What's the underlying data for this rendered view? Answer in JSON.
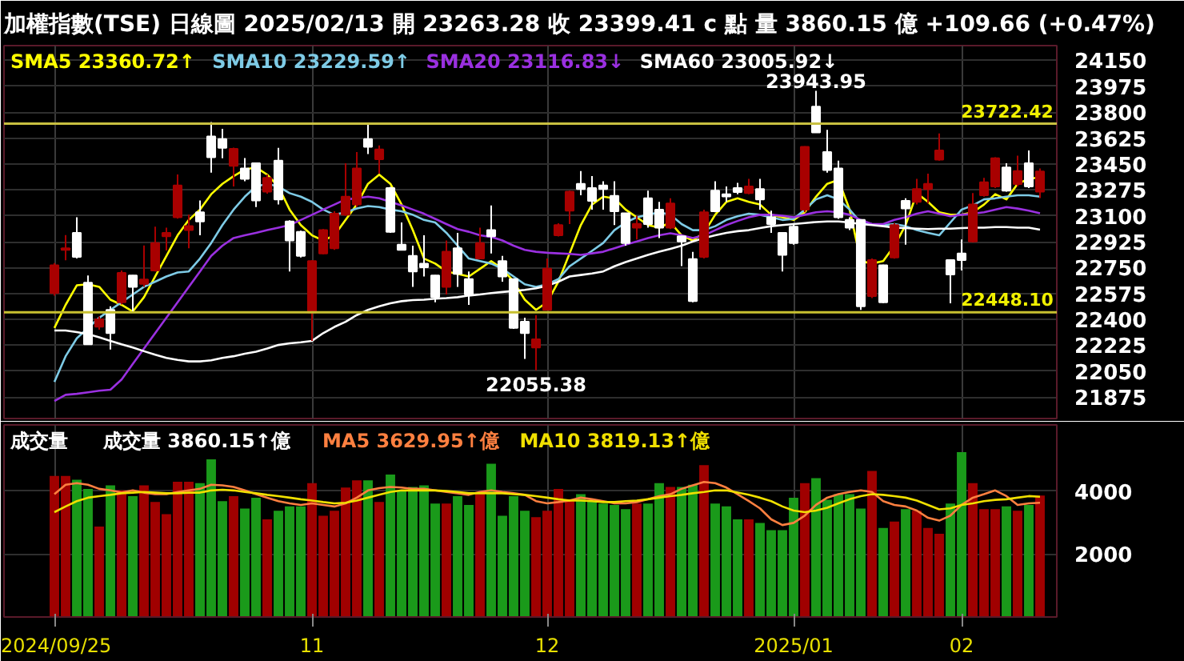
{
  "chart_data": [
    {
      "type": "candlestick",
      "title": "加權指數(TSE)  日線圖  2025/02/13  開 23263.28  收 23399.41 c 點  量 3860.15 億  +109.66 (+0.47%)",
      "categories": [
        "2024/09/25",
        null,
        null,
        null,
        null,
        null,
        null,
        null,
        null,
        null,
        null,
        null,
        null,
        null,
        null,
        null,
        null,
        null,
        null,
        null,
        null,
        null,
        null,
        "11",
        null,
        null,
        null,
        null,
        null,
        null,
        null,
        null,
        null,
        null,
        null,
        null,
        null,
        null,
        null,
        null,
        null,
        null,
        null,
        null,
        "12",
        null,
        null,
        null,
        null,
        null,
        null,
        null,
        null,
        null,
        null,
        null,
        null,
        null,
        null,
        null,
        null,
        null,
        null,
        null,
        null,
        null,
        "2025/01",
        null,
        null,
        null,
        null,
        null,
        null,
        null,
        null,
        null,
        null,
        null,
        null,
        null,
        null,
        "02",
        null,
        null,
        null,
        null,
        null,
        null,
        null
      ],
      "colors": [
        "#a80000",
        "#a80000",
        "#ffffff",
        "#ffffff",
        "#a80000",
        "#ffffff",
        "#a80000",
        "#ffffff",
        "#a80000",
        "#a80000",
        "#a80000",
        "#a80000",
        "#a80000",
        "#ffffff",
        "#ffffff",
        "#ffffff",
        "#a80000",
        "#ffffff",
        "#ffffff",
        "#a80000",
        "#ffffff",
        "#ffffff",
        "#ffffff",
        "#a80000",
        "#a80000",
        "#a80000",
        "#a80000",
        "#a80000",
        "#ffffff",
        "#a80000",
        "#ffffff",
        "#ffffff",
        "#ffffff",
        "#ffffff",
        "#ffffff",
        "#a80000",
        "#ffffff",
        "#ffffff",
        "#a80000",
        "#ffffff",
        "#ffffff",
        "#ffffff",
        "#ffffff",
        "#a80000",
        "#a80000",
        "#a80000",
        "#a80000",
        "#ffffff",
        "#ffffff",
        "#ffffff",
        "#ffffff",
        "#ffffff",
        "#a80000",
        "#ffffff",
        "#ffffff",
        "#a80000",
        "#ffffff",
        "#ffffff",
        "#a80000",
        "#ffffff",
        "#ffffff",
        "#ffffff",
        "#a80000",
        "#ffffff",
        "#ffffff",
        "#ffffff",
        "#ffffff",
        "#a80000",
        "#ffffff",
        "#ffffff",
        "#ffffff",
        "#ffffff",
        "#ffffff",
        "#a80000",
        "#ffffff",
        "#a80000",
        "#ffffff",
        "#a80000",
        "#a80000",
        "#a80000",
        "#ffffff",
        "#ffffff",
        "#a80000",
        "#a80000",
        "#a80000",
        "#ffffff",
        "#a80000",
        "#ffffff",
        "#a80000"
      ],
      "ohlc": [
        [
          22578,
          22780,
          22560,
          22766
        ],
        [
          22870,
          22970,
          22800,
          22880
        ],
        [
          22985,
          23090,
          22811,
          22822
        ],
        [
          22648,
          22697,
          22231,
          22231
        ],
        [
          22350,
          22420,
          22330,
          22400
        ],
        [
          22464,
          22488,
          22196,
          22307
        ],
        [
          22516,
          22730,
          22500,
          22714
        ],
        [
          22697,
          22700,
          22450,
          22620
        ],
        [
          22640,
          22900,
          22620,
          22670
        ],
        [
          22731,
          23027,
          22724,
          22915
        ],
        [
          22961,
          23020,
          22865,
          22985
        ],
        [
          23090,
          23380,
          23080,
          23305
        ],
        [
          23003,
          23107,
          22880,
          23030
        ],
        [
          23124,
          23204,
          22968,
          23062
        ],
        [
          23636,
          23733,
          23392,
          23496
        ],
        [
          23618,
          23688,
          23489,
          23559
        ],
        [
          23437,
          23560,
          23298,
          23552
        ],
        [
          23420,
          23490,
          23333,
          23350
        ],
        [
          23455,
          23460,
          23159,
          23204
        ],
        [
          23263,
          23380,
          23250,
          23357
        ],
        [
          23472,
          23559,
          23176,
          23211
        ],
        [
          23062,
          23070,
          22724,
          22933
        ],
        [
          22992,
          23000,
          22818,
          22829
        ],
        [
          22446,
          22800,
          22255,
          22794
        ],
        [
          22846,
          23010,
          22840,
          23003
        ],
        [
          22881,
          23130,
          22870,
          23114
        ],
        [
          23107,
          23455,
          23100,
          23229
        ],
        [
          23176,
          23531,
          23160,
          23420
        ],
        [
          23618,
          23715,
          23517,
          23566
        ],
        [
          23482,
          23576,
          23385,
          23548
        ],
        [
          23288,
          23295,
          22985,
          22992
        ],
        [
          22905,
          23055,
          22865,
          22870
        ],
        [
          22829,
          22898,
          22620,
          22724
        ],
        [
          22776,
          22968,
          22690,
          22752
        ],
        [
          22697,
          22700,
          22516,
          22550
        ],
        [
          22620,
          22933,
          22568,
          22857
        ],
        [
          22881,
          22985,
          22620,
          22707
        ],
        [
          22672,
          22724,
          22498,
          22568
        ],
        [
          22811,
          23020,
          22810,
          22916
        ],
        [
          23003,
          23170,
          22846,
          22961
        ],
        [
          22794,
          22829,
          22655,
          22690
        ],
        [
          22672,
          22675,
          22335,
          22342
        ],
        [
          22384,
          22411,
          22133,
          22307
        ],
        [
          22210,
          22429,
          22055.38,
          22265
        ],
        [
          22464,
          22811,
          22460,
          22742
        ],
        [
          22968,
          23050,
          22960,
          23037
        ],
        [
          23135,
          23270,
          23044,
          23263
        ],
        [
          23316,
          23402,
          23239,
          23281
        ],
        [
          23288,
          23368,
          23142,
          23201
        ],
        [
          23305,
          23333,
          23142,
          23281
        ],
        [
          23235,
          23333,
          23037,
          23131
        ],
        [
          23117,
          23120,
          22898,
          22916
        ],
        [
          23020,
          23100,
          22940,
          23045
        ],
        [
          23218,
          23270,
          23020,
          23044
        ],
        [
          23142,
          23194,
          22950,
          23020
        ],
        [
          23020,
          23218,
          23010,
          23183
        ],
        [
          22961,
          22965,
          22760,
          22926
        ],
        [
          22808,
          22856,
          22516,
          22523
        ],
        [
          22822,
          23142,
          22811,
          23124
        ],
        [
          23270,
          23333,
          23124,
          23131
        ],
        [
          23245,
          23298,
          23194,
          23230
        ],
        [
          23288,
          23322,
          23245,
          23260
        ],
        [
          23253,
          23350,
          23245,
          23298
        ],
        [
          23281,
          23350,
          23142,
          23211
        ],
        [
          23090,
          23135,
          22985,
          23044
        ],
        [
          22985,
          22990,
          22724,
          22836
        ],
        [
          23027,
          23040,
          22905,
          22916
        ],
        [
          23142,
          23570,
          23124,
          23566
        ],
        [
          23837,
          23943.95,
          23660,
          23663
        ],
        [
          23531,
          23681,
          23392,
          23409
        ],
        [
          23420,
          23472,
          23079,
          23090
        ],
        [
          23072,
          23090,
          23003,
          23020
        ],
        [
          23072,
          23075,
          22464,
          22488
        ],
        [
          22557,
          22811,
          22544,
          22801
        ],
        [
          22766,
          22770,
          22510,
          22516
        ],
        [
          22818,
          23050,
          22810,
          23037
        ],
        [
          23201,
          23218,
          22905,
          23149
        ],
        [
          23194,
          23350,
          23176,
          23281
        ],
        [
          23281,
          23385,
          23183,
          23316
        ],
        [
          23479,
          23656,
          23472,
          23542
        ],
        [
          22801,
          22805,
          22509,
          22704
        ],
        [
          22846,
          22940,
          22731,
          22801
        ],
        [
          22926,
          23253,
          22920,
          23176
        ],
        [
          23239,
          23357,
          23229,
          23326
        ],
        [
          23298,
          23496,
          23288,
          23489
        ],
        [
          23427,
          23455,
          23263,
          23270
        ],
        [
          23315,
          23507,
          23298,
          23402
        ],
        [
          23455,
          23541,
          23288,
          23298
        ],
        [
          23263.28,
          23420,
          23220,
          23399.41
        ]
      ],
      "series": [
        {
          "type": "line",
          "name": "SMA5 23360.72↑",
          "color": "#ffff00",
          "values": [
            22342,
            22498,
            22630,
            22637,
            22620,
            22533,
            22498,
            22453,
            22550,
            22690,
            22829,
            22968,
            23072,
            23142,
            23246,
            23316,
            23368,
            23413,
            23427,
            23378,
            23298,
            23142,
            23037,
            22968,
            22933,
            22968,
            23072,
            23176,
            23316,
            23378,
            23316,
            23176,
            23003,
            22811,
            22777,
            22724,
            22707,
            22690,
            22742,
            22794,
            22742,
            22655,
            22533,
            22464,
            22516,
            22655,
            22846,
            23037,
            23176,
            23229,
            23218,
            23142,
            23090,
            23037,
            23020,
            23055,
            22968,
            22933,
            22985,
            23107,
            23194,
            23218,
            23194,
            23176,
            23107,
            23090,
            23072,
            23124,
            23229,
            23316,
            23343,
            23142,
            22794,
            22777,
            22794,
            22898,
            23037,
            23253,
            23194,
            23124,
            23107,
            23107,
            23124,
            23176,
            23246,
            23211,
            23316,
            23350,
            23360.72
          ]
        },
        {
          "type": "line",
          "name": "SMA10 23229.59↑",
          "color": "#7ecbe6",
          "values": [
            21977,
            22151,
            22272,
            22342,
            22411,
            22464,
            22516,
            22568,
            22620,
            22655,
            22690,
            22717,
            22724,
            22811,
            22916,
            23037,
            23142,
            23229,
            23298,
            23316,
            23298,
            23253,
            23229,
            23194,
            23142,
            23107,
            23124,
            23149,
            23166,
            23159,
            23142,
            23131,
            23107,
            23072,
            23055,
            22985,
            22898,
            22811,
            22794,
            22777,
            22742,
            22690,
            22637,
            22620,
            22637,
            22672,
            22759,
            22811,
            22863,
            22916,
            23003,
            23055,
            23090,
            23107,
            23124,
            23107,
            23044,
            23003,
            23003,
            23030,
            23072,
            23097,
            23114,
            23107,
            23090,
            23072,
            23079,
            23142,
            23211,
            23239,
            23211,
            23142,
            23055,
            23044,
            23037,
            23044,
            23030,
            23003,
            22985,
            22968,
            23055,
            23142,
            23170,
            23211,
            23218,
            23229,
            23239,
            23239,
            23229.59
          ]
        },
        {
          "type": "line",
          "name": "SMA20 23116.83↓",
          "color": "#9a30e0",
          "values": [
            21848,
            21890,
            21897,
            21907,
            21918,
            21925,
            21994,
            22099,
            22203,
            22307,
            22411,
            22516,
            22620,
            22724,
            22829,
            22898,
            22950,
            22968,
            22985,
            23003,
            23020,
            23037,
            23072,
            23107,
            23142,
            23176,
            23211,
            23218,
            23229,
            23218,
            23194,
            23170,
            23142,
            23114,
            23079,
            23044,
            23010,
            22992,
            22968,
            22957,
            22933,
            22898,
            22870,
            22857,
            22850,
            22846,
            22843,
            22836,
            22846,
            22857,
            22881,
            22905,
            22926,
            22950,
            22968,
            22982,
            22968,
            22950,
            22968,
            23003,
            23037,
            23065,
            23090,
            23107,
            23107,
            23100,
            23090,
            23107,
            23124,
            23131,
            23124,
            23107,
            23072,
            23044,
            23044,
            23072,
            23090,
            23114,
            23131,
            23114,
            23097,
            23107,
            23114,
            23124,
            23142,
            23159,
            23149,
            23135,
            23116.83
          ]
        },
        {
          "type": "line",
          "name": "SMA60 23005.92↓",
          "color": "#ffffff",
          "values": [
            22325,
            22325,
            22314,
            22300,
            22279,
            22255,
            22231,
            22210,
            22185,
            22161,
            22140,
            22126,
            22116,
            22116,
            22123,
            22140,
            22151,
            22168,
            22182,
            22203,
            22227,
            22238,
            22245,
            22255,
            22307,
            22349,
            22384,
            22429,
            22464,
            22488,
            22509,
            22523,
            22530,
            22533,
            22540,
            22544,
            22550,
            22561,
            22568,
            22578,
            22585,
            22592,
            22599,
            22610,
            22627,
            22655,
            22690,
            22700,
            22710,
            22724,
            22759,
            22787,
            22811,
            22836,
            22857,
            22877,
            22898,
            22926,
            22950,
            22968,
            22985,
            22996,
            23003,
            23017,
            23030,
            23037,
            23044,
            23051,
            23058,
            23062,
            23062,
            23055,
            23044,
            23037,
            23030,
            23020,
            23017,
            23013,
            23010,
            23013,
            23013,
            23017,
            23020,
            23020,
            23024,
            23024,
            23020,
            23020,
            23005.92
          ]
        }
      ],
      "ylim": [
        21730,
        24250
      ],
      "yticks": [
        21875,
        22050,
        22225,
        22400,
        22575,
        22750,
        22925,
        23100,
        23275,
        23450,
        23625,
        23800,
        23975,
        24150
      ],
      "ref_lines": [
        {
          "axis": "y",
          "value": 23722.42,
          "label": "23722.42",
          "color": "#c8c040"
        },
        {
          "axis": "y",
          "value": 22448.1,
          "label": "22448.10",
          "color": "#c8c030"
        }
      ],
      "annotations": [
        {
          "text": "23943.95",
          "y": 23943.95
        },
        {
          "text": "22055.38",
          "y": 22055.38
        }
      ],
      "grid": true,
      "legend": "top left",
      "tick_labels": "y"
    },
    {
      "type": "bar",
      "title": "成交量",
      "categories": [
        "2024/09/25",
        null,
        null,
        null,
        null,
        null,
        null,
        null,
        null,
        null,
        null,
        null,
        null,
        null,
        null,
        null,
        null,
        null,
        null,
        null,
        null,
        null,
        null,
        "11",
        null,
        null,
        null,
        null,
        null,
        null,
        null,
        null,
        null,
        null,
        null,
        null,
        null,
        null,
        null,
        null,
        null,
        null,
        null,
        null,
        "12",
        null,
        null,
        null,
        null,
        null,
        null,
        null,
        null,
        null,
        null,
        null,
        null,
        null,
        null,
        null,
        null,
        null,
        null,
        null,
        null,
        null,
        "2025/01",
        null,
        null,
        null,
        null,
        null,
        null,
        null,
        null,
        null,
        null,
        null,
        null,
        null,
        null,
        "02",
        null,
        null,
        null,
        null,
        null,
        null,
        null
      ],
      "series": [
        {
          "type": "bar",
          "name": "成交量 3860.15↑億",
          "values": [
            4478,
            4478,
            4362,
            4064,
            2873,
            4179,
            4020,
            3837,
            4179,
            3653,
            3263,
            4295,
            4295,
            4248,
            5007,
            3676,
            3837,
            3446,
            3790,
            3100,
            3374,
            3514,
            3514,
            4248,
            3215,
            3374,
            4111,
            4338,
            4338,
            3653,
            4524,
            4020,
            4132,
            4179,
            3605,
            3605,
            3837,
            3560,
            3972,
            4868,
            3215,
            3837,
            3374,
            3171,
            3374,
            4064,
            3745,
            3904,
            3676,
            3605,
            3560,
            3422,
            3605,
            3605,
            4248,
            4132,
            4132,
            4202,
            4820,
            3605,
            3514,
            3100,
            3100,
            2988,
            2757,
            2757,
            3790,
            4248,
            4410,
            3721,
            3904,
            3904,
            3446,
            4637,
            2825,
            3032,
            3422,
            3374,
            2825,
            2641,
            3605,
            5235,
            4248,
            3422,
            3422,
            3514,
            3374,
            3560,
            3860.15
          ],
          "colors": [
            "#a00000",
            "#a00000",
            "#1a9a1a",
            "#1a9a1a",
            "#a00000",
            "#1a9a1a",
            "#a00000",
            "#1a9a1a",
            "#a00000",
            "#a00000",
            "#a00000",
            "#a00000",
            "#a00000",
            "#1a9a1a",
            "#1a9a1a",
            "#1a9a1a",
            "#a00000",
            "#1a9a1a",
            "#1a9a1a",
            "#a00000",
            "#1a9a1a",
            "#1a9a1a",
            "#1a9a1a",
            "#a00000",
            "#a00000",
            "#a00000",
            "#a00000",
            "#a00000",
            "#1a9a1a",
            "#a00000",
            "#1a9a1a",
            "#1a9a1a",
            "#1a9a1a",
            "#1a9a1a",
            "#1a9a1a",
            "#a00000",
            "#1a9a1a",
            "#1a9a1a",
            "#a00000",
            "#1a9a1a",
            "#1a9a1a",
            "#1a9a1a",
            "#1a9a1a",
            "#a00000",
            "#a00000",
            "#a00000",
            "#a00000",
            "#1a9a1a",
            "#1a9a1a",
            "#1a9a1a",
            "#1a9a1a",
            "#1a9a1a",
            "#a00000",
            "#1a9a1a",
            "#1a9a1a",
            "#a00000",
            "#1a9a1a",
            "#1a9a1a",
            "#a00000",
            "#1a9a1a",
            "#1a9a1a",
            "#1a9a1a",
            "#a00000",
            "#1a9a1a",
            "#1a9a1a",
            "#1a9a1a",
            "#1a9a1a",
            "#a00000",
            "#1a9a1a",
            "#1a9a1a",
            "#1a9a1a",
            "#1a9a1a",
            "#1a9a1a",
            "#a00000",
            "#1a9a1a",
            "#a00000",
            "#1a9a1a",
            "#a00000",
            "#a00000",
            "#a00000",
            "#1a9a1a",
            "#1a9a1a",
            "#a00000",
            "#a00000",
            "#a00000",
            "#1a9a1a",
            "#a00000",
            "#1a9a1a",
            "#a00000"
          ]
        },
        {
          "type": "line",
          "name": "MA5 3629.95↑億",
          "color": "#ff8040",
          "values": [
            3900,
            4200,
            4250,
            4200,
            4070,
            4020,
            3950,
            4020,
            3950,
            3900,
            3900,
            3970,
            4020,
            4070,
            4200,
            4180,
            4130,
            4020,
            3900,
            3790,
            3680,
            3610,
            3560,
            3610,
            3560,
            3510,
            3610,
            3790,
            4020,
            4090,
            4130,
            4110,
            4070,
            4070,
            4020,
            3970,
            3930,
            3880,
            3970,
            4020,
            3970,
            3930,
            3880,
            3680,
            3610,
            3650,
            3700,
            3790,
            3740,
            3680,
            3610,
            3610,
            3650,
            3740,
            3840,
            3900,
            4070,
            4180,
            4290,
            4250,
            4110,
            3900,
            3680,
            3450,
            3100,
            2920,
            2990,
            3220,
            3560,
            3790,
            3900,
            3970,
            4020,
            3970,
            3680,
            3560,
            3510,
            3380,
            3150,
            3060,
            3220,
            3560,
            3790,
            3900,
            4020,
            3840,
            3560,
            3610,
            3629.95
          ]
        },
        {
          "type": "line",
          "name": "MA10 3819.13↑億",
          "color": "#f0e000",
          "values": [
            3330,
            3510,
            3680,
            3790,
            3840,
            3880,
            3930,
            3950,
            3970,
            3950,
            3930,
            3930,
            3950,
            3950,
            4020,
            4040,
            4020,
            3970,
            3930,
            3880,
            3840,
            3790,
            3740,
            3700,
            3650,
            3610,
            3630,
            3700,
            3790,
            3880,
            3970,
            4020,
            4020,
            4020,
            4020,
            4000,
            3970,
            3930,
            3930,
            3930,
            3930,
            3900,
            3880,
            3840,
            3790,
            3740,
            3700,
            3700,
            3680,
            3650,
            3650,
            3680,
            3700,
            3740,
            3790,
            3840,
            3880,
            3930,
            3970,
            4020,
            4020,
            3950,
            3880,
            3790,
            3680,
            3510,
            3380,
            3330,
            3380,
            3470,
            3610,
            3740,
            3840,
            3900,
            3880,
            3840,
            3790,
            3700,
            3560,
            3420,
            3450,
            3560,
            3610,
            3680,
            3720,
            3740,
            3790,
            3840,
            3819.13
          ]
        }
      ],
      "ylim": [
        0,
        6100
      ],
      "yticks": [
        2000,
        4000
      ],
      "grid": true,
      "legend": "top left"
    }
  ]
}
